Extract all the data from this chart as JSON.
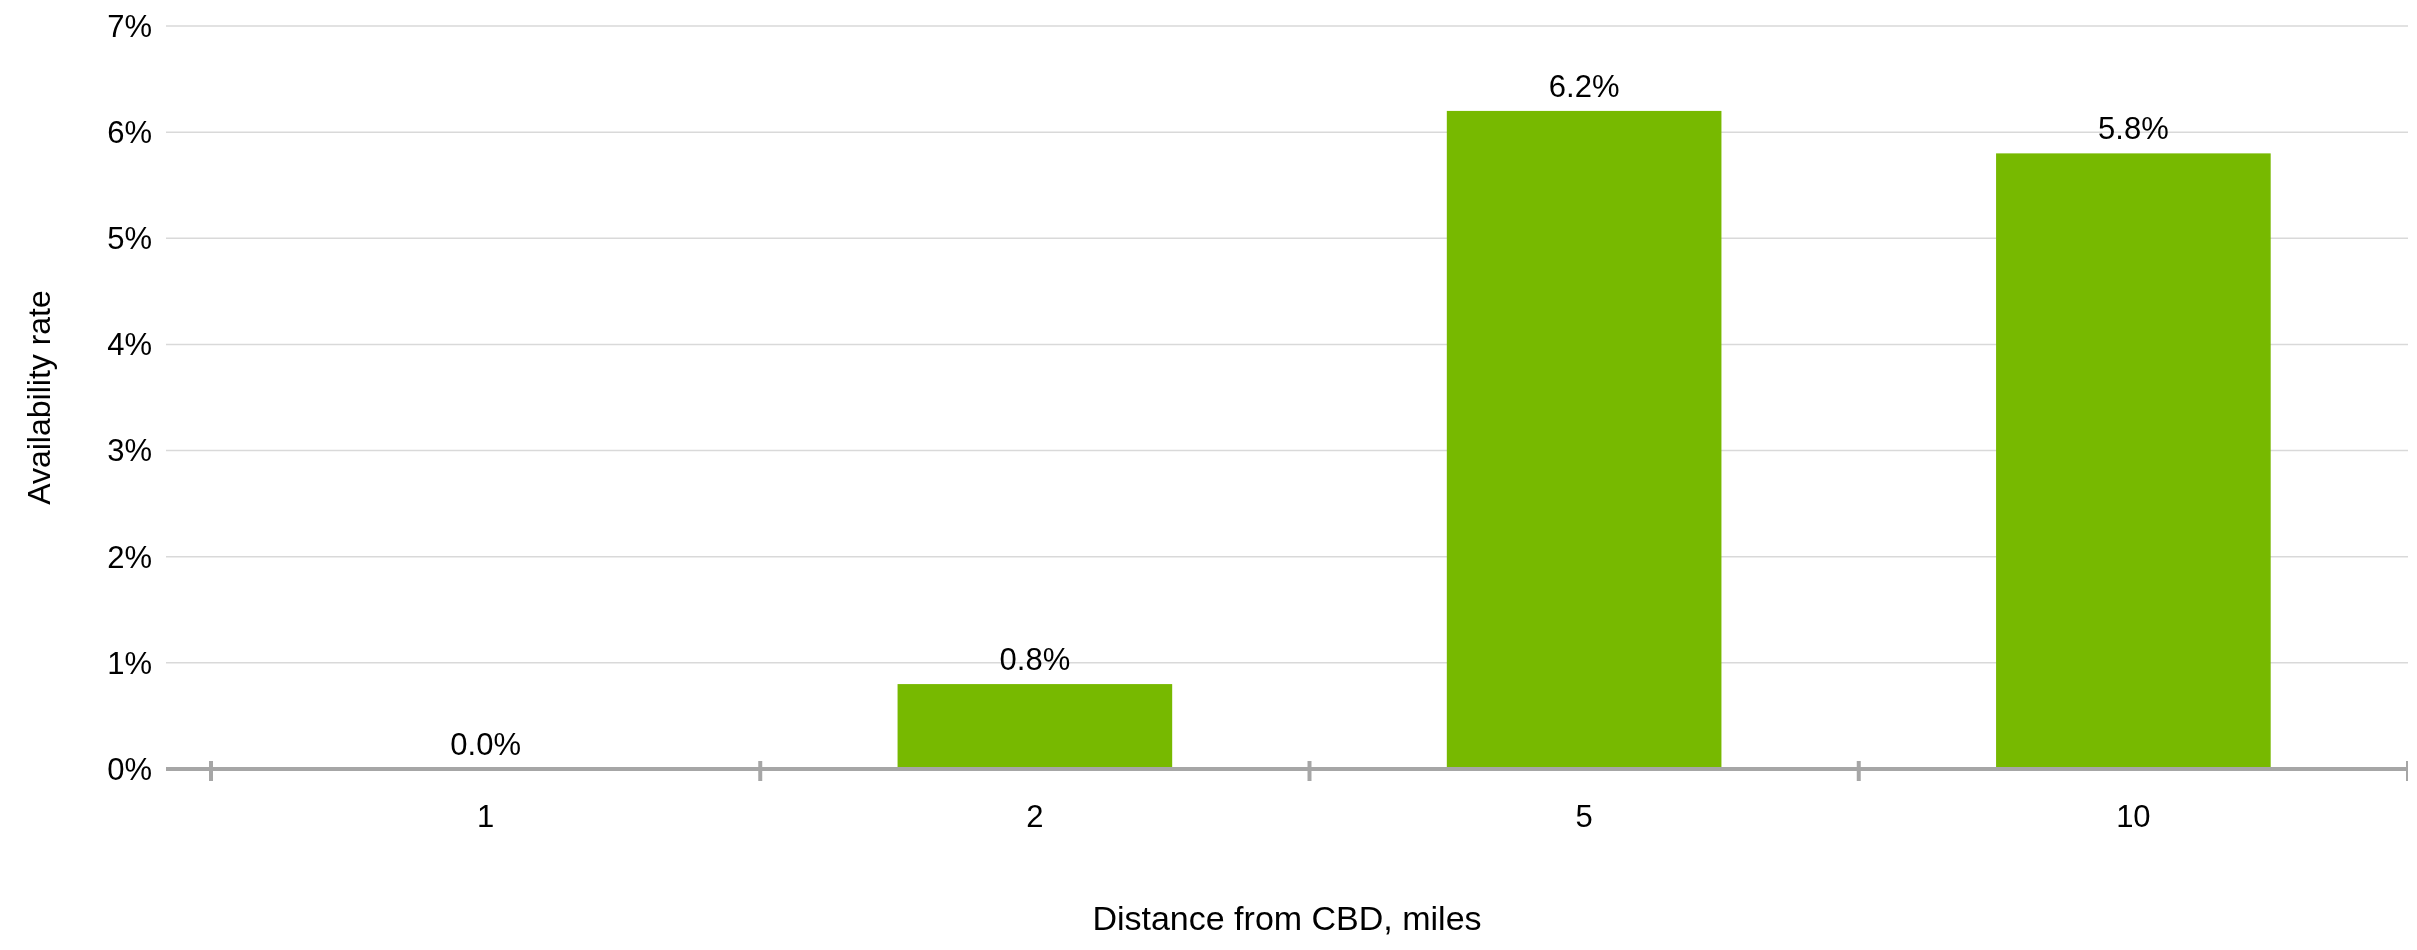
{
  "chart_data": {
    "type": "bar",
    "xlabel": "Distance from CBD, miles",
    "ylabel": "Availability rate",
    "categories": [
      "1",
      "2",
      "5",
      "10"
    ],
    "values": [
      0.0,
      0.8,
      6.2,
      5.8
    ],
    "value_labels": [
      "0.0%",
      "0.8%",
      "6.2%",
      "5.8%"
    ],
    "color": "#77b900",
    "ylim": [
      0,
      7
    ],
    "yticks": [
      {
        "value": 0,
        "label": "0%"
      },
      {
        "value": 1,
        "label": "1%"
      },
      {
        "value": 2,
        "label": "2%"
      },
      {
        "value": 3,
        "label": "3%"
      },
      {
        "value": 4,
        "label": "4%"
      },
      {
        "value": 5,
        "label": "5%"
      },
      {
        "value": 6,
        "label": "6%"
      },
      {
        "value": 7,
        "label": "7%"
      }
    ],
    "grid": "y"
  }
}
